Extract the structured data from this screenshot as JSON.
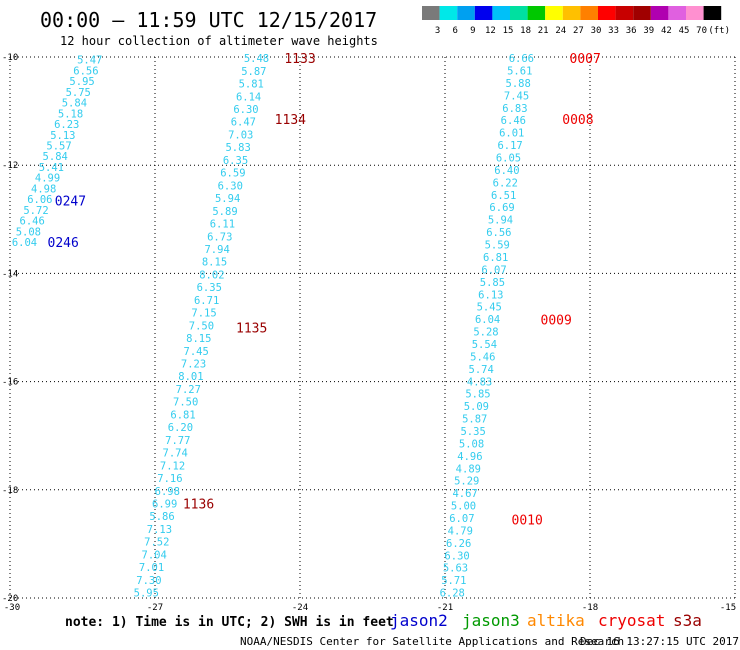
{
  "title": "00:00 – 11:59 UTC 12/15/2017",
  "subtitle": "12 hour collection of altimeter wave heights",
  "note": "note: 1) Time is in UTC; 2) SWH is in feet",
  "footer_left": "NOAA/NESDIS Center for Satellite Applications and Research",
  "footer_right": "Dec 16 13:27:15 UTC 2017",
  "colors": {
    "grid": "#000000",
    "jason2": "#0000cc",
    "jason3": "#009900",
    "altika": "#ff8800",
    "cryosat": "#ee0000",
    "s3a": "#990000",
    "swh_default": "#33ccee"
  },
  "chart_data": {
    "type": "scatter",
    "title": "00:00 – 11:59 UTC 12/15/2017",
    "subtitle": "12 hour collection of altimeter wave heights",
    "xlim": [
      -30,
      -15
    ],
    "ylim": [
      -20,
      -10
    ],
    "x_ticks": [
      -30,
      -27,
      -24,
      -21,
      -18,
      -15
    ],
    "y_ticks": [
      -10,
      -12,
      -14,
      -16,
      -18,
      -20
    ],
    "x_tick_labels": [
      "-30",
      "-27",
      "-24",
      "-21",
      "-18",
      "-15"
    ],
    "y_tick_labels": [
      "-10",
      "-12",
      "-14",
      "-16",
      "-18",
      "-20"
    ],
    "grid": true,
    "legend": [
      {
        "name": "jason2",
        "color": "#0000cc"
      },
      {
        "name": "jason3",
        "color": "#009900"
      },
      {
        "name": "altika",
        "color": "#ff8800"
      },
      {
        "name": "cryosat",
        "color": "#ee0000"
      },
      {
        "name": "s3a",
        "color": "#990000"
      }
    ],
    "colorbar": {
      "labels": [
        "3",
        "6",
        "9",
        "12",
        "15",
        "18",
        "21",
        "24",
        "27",
        "30",
        "33",
        "36",
        "39",
        "42",
        "45",
        "70",
        "(ft)"
      ],
      "colors": [
        "#7a7a7a",
        "#00e8e8",
        "#00a0f0",
        "#0000ee",
        "#00c0f8",
        "#00e0a0",
        "#00c800",
        "#ffff00",
        "#ffc000",
        "#ff8000",
        "#ff0000",
        "#c80000",
        "#a00000",
        "#b000b0",
        "#e060e0",
        "#ff90d0",
        "#000000"
      ]
    },
    "tracks": [
      {
        "name": "A",
        "color": "#33ccee",
        "x_start": -28.35,
        "y_start": -10.05,
        "x_end": -29.7,
        "y_end": -13.42,
        "values": [
          "5.47",
          "6.56",
          "5.95",
          "5.75",
          "5.84",
          "5.18",
          "6.23",
          "5.13",
          "5.57",
          "5.84",
          "5.41",
          "4.99",
          "4.98",
          "6.06",
          "5.72",
          "6.46",
          "5.08",
          "6.04"
        ]
      },
      {
        "name": "B",
        "color": "#33ccee",
        "x_start": -24.9,
        "y_start": -10.02,
        "x_end": -27.18,
        "y_end": -19.9,
        "values": [
          "5.48",
          "5.87",
          "5.81",
          "6.14",
          "6.30",
          "6.47",
          "7.03",
          "5.83",
          "6.35",
          "6.59",
          "6.30",
          "5.94",
          "5.89",
          "6.11",
          "6.73",
          "7.94",
          "8.15",
          "8.02",
          "6.35",
          "6.71",
          "7.15",
          "7.50",
          "8.15",
          "7.45",
          "7.23",
          "8.01",
          "7.27",
          "7.50",
          "6.81",
          "6.20",
          "7.77",
          "7.74",
          "7.12",
          "7.16",
          "6.98",
          "6.99",
          "5.86",
          "7.13",
          "7.52",
          "7.04",
          "7.01",
          "7.30",
          "5.95"
        ]
      },
      {
        "name": "C",
        "color": "#33ccee",
        "x_start": -19.42,
        "y_start": -10.02,
        "x_end": -20.85,
        "y_end": -19.9,
        "values": [
          "6.66",
          "5.61",
          "5.88",
          "7.45",
          "6.83",
          "6.46",
          "6.01",
          "6.17",
          "6.05",
          "6.40",
          "6.22",
          "6.51",
          "6.69",
          "5.94",
          "6.56",
          "5.59",
          "6.81",
          "6.07",
          "5.85",
          "6.13",
          "5.45",
          "6.04",
          "5.28",
          "5.54",
          "5.46",
          "5.74",
          "4.83",
          "5.85",
          "5.09",
          "5.87",
          "5.35",
          "5.08",
          "4.96",
          "4.89",
          "5.29",
          "4.67",
          "5.00",
          "6.07",
          "4.79",
          "6.26",
          "6.30",
          "5.63",
          "5.71",
          "6.28"
        ]
      }
    ],
    "time_labels": [
      {
        "text": "1133",
        "x": -24.0,
        "y": -10.02,
        "satellite": "s3a",
        "color": "#990000"
      },
      {
        "text": "1134",
        "x": -24.2,
        "y": -11.15,
        "satellite": "s3a",
        "color": "#990000"
      },
      {
        "text": "1135",
        "x": -25.0,
        "y": -15.0,
        "satellite": "s3a",
        "color": "#990000"
      },
      {
        "text": "1136",
        "x": -26.1,
        "y": -18.25,
        "satellite": "s3a",
        "color": "#990000"
      },
      {
        "text": "0247",
        "x": -28.75,
        "y": -12.65,
        "satellite": "jason2",
        "color": "#0000cc"
      },
      {
        "text": "0246",
        "x": -28.9,
        "y": -13.42,
        "satellite": "jason2",
        "color": "#0000cc"
      },
      {
        "text": "0007",
        "x": -18.1,
        "y": -10.02,
        "satellite": "cryosat",
        "color": "#ee0000"
      },
      {
        "text": "0008",
        "x": -18.25,
        "y": -11.15,
        "satellite": "cryosat",
        "color": "#ee0000"
      },
      {
        "text": "0009",
        "x": -18.7,
        "y": -14.85,
        "satellite": "cryosat",
        "color": "#ee0000"
      },
      {
        "text": "0010",
        "x": -19.3,
        "y": -18.55,
        "satellite": "cryosat",
        "color": "#ee0000"
      }
    ]
  }
}
